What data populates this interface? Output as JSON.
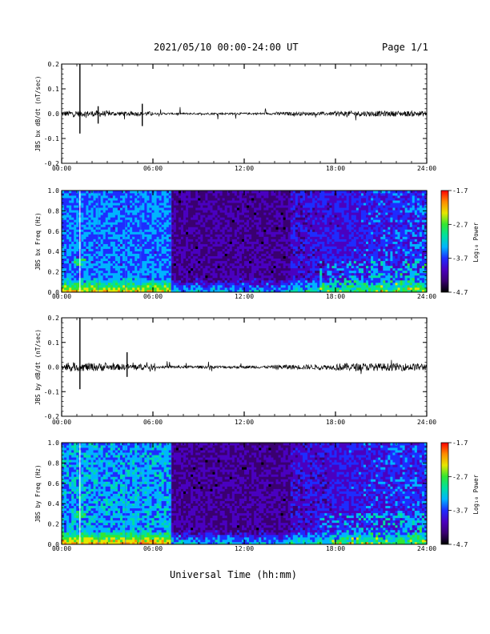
{
  "header": {
    "title": "2021/05/10  00:00-24:00 UT",
    "page": "Page 1/1"
  },
  "x_axis_title": "Universal Time (hh:mm)",
  "colorbar": {
    "label": "Log₁₀ Power",
    "ticks": [
      "-1.7",
      "-2.7",
      "-3.7",
      "-4.7"
    ],
    "range": [
      -4.7,
      -1.7
    ],
    "colors": [
      "#000000",
      "#3a0070",
      "#4a00c0",
      "#1e2cff",
      "#00b4ff",
      "#00e0a0",
      "#32e632",
      "#e6e600",
      "#ff8c00",
      "#ff0000"
    ]
  },
  "time_ticks": [
    "00:00",
    "06:00",
    "12:00",
    "18:00",
    "24:00"
  ],
  "chart_data": [
    {
      "type": "line",
      "ylabel": "JBS bx dB/dt (nT/sec)",
      "xlim": [
        0,
        24
      ],
      "ylim": [
        -0.2,
        0.2
      ],
      "yticks": [
        "0.2",
        "0.1",
        "0.0",
        "-0.1",
        "-0.2"
      ],
      "series": [
        {
          "values": [
            {
              "x": 0.0,
              "y": 0.01
            },
            {
              "x": 1.2,
              "y": 0.2
            },
            {
              "x": 1.2,
              "y": -0.08
            },
            {
              "x": 2.4,
              "y": 0.03
            },
            {
              "x": 2.4,
              "y": -0.04
            },
            {
              "x": 5.3,
              "y": 0.04
            },
            {
              "x": 5.3,
              "y": -0.05
            },
            {
              "x": 7.0,
              "y": 0.0
            },
            {
              "x": 12.0,
              "y": 0.0
            },
            {
              "x": 17.5,
              "y": 0.02
            },
            {
              "x": 20.6,
              "y": 0.05
            },
            {
              "x": 24.0,
              "y": 0.0
            }
          ]
        }
      ]
    },
    {
      "type": "heatmap",
      "ylabel": "JBS bx Freq (Hz)",
      "xlim": [
        0,
        24
      ],
      "ylim": [
        0.0,
        1.0
      ],
      "yticks": [
        "1.0",
        "0.8",
        "0.6",
        "0.4",
        "0.2",
        "0.0"
      ],
      "zlim": [
        -4.7,
        -1.7
      ]
    },
    {
      "type": "line",
      "ylabel": "JBS by dB/dt (nT/sec)",
      "xlim": [
        0,
        24
      ],
      "ylim": [
        -0.2,
        0.2
      ],
      "yticks": [
        "0.2",
        "0.1",
        "0.0",
        "-0.1",
        "-0.2"
      ],
      "series": [
        {
          "values": [
            {
              "x": 0.0,
              "y": 0.02
            },
            {
              "x": 1.2,
              "y": 0.2
            },
            {
              "x": 1.2,
              "y": -0.09
            },
            {
              "x": 4.3,
              "y": 0.06
            },
            {
              "x": 4.3,
              "y": -0.04
            },
            {
              "x": 12.0,
              "y": 0.0
            },
            {
              "x": 20.9,
              "y": 0.05
            },
            {
              "x": 24.0,
              "y": 0.01
            }
          ]
        }
      ]
    },
    {
      "type": "heatmap",
      "ylabel": "JBS by Freq (Hz)",
      "xlim": [
        0,
        24
      ],
      "ylim": [
        0.0,
        1.0
      ],
      "yticks": [
        "1.0",
        "0.8",
        "0.6",
        "0.4",
        "0.2",
        "0.0"
      ],
      "zlim": [
        -4.7,
        -1.7
      ]
    }
  ]
}
